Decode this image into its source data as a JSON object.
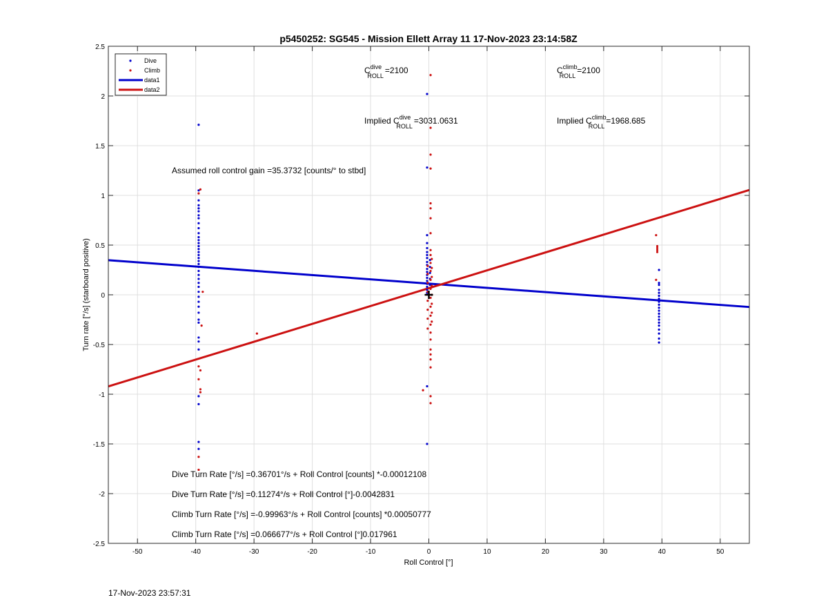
{
  "chart_data": {
    "type": "scatter",
    "title": "p5450252: SG545 - Mission Ellett Array 11 17-Nov-2023 23:14:58Z",
    "xlabel": "Roll Control [°]",
    "ylabel": "Turn rate [°/s] (starboard positive)",
    "xlim": [
      -55,
      55
    ],
    "ylim": [
      -2.5,
      2.5
    ],
    "xticks": [
      -50,
      -40,
      -30,
      -20,
      -10,
      0,
      10,
      20,
      30,
      40,
      50
    ],
    "yticks": [
      -2.5,
      -2,
      -1.5,
      -1,
      -0.5,
      0,
      0.5,
      1,
      1.5,
      2,
      2.5
    ],
    "grid": true,
    "legend_position": "top-left",
    "legend": [
      "Dive",
      "Climb",
      "data1",
      "data2"
    ],
    "colors": {
      "dive": "#0000cc",
      "climb": "#cc1111",
      "marker": "#000000"
    },
    "series": [
      {
        "name": "Dive",
        "kind": "points",
        "color": "#0000cc",
        "points": [
          [
            -39.5,
            1.71
          ],
          [
            -39.5,
            1.05
          ],
          [
            -39.5,
            0.95
          ],
          [
            -39.5,
            0.9
          ],
          [
            -39.5,
            0.87
          ],
          [
            -39.5,
            0.84
          ],
          [
            -39.5,
            0.8
          ],
          [
            -39.5,
            0.77
          ],
          [
            -39.5,
            0.72
          ],
          [
            -39.5,
            0.67
          ],
          [
            -39.5,
            0.62
          ],
          [
            -39.5,
            0.58
          ],
          [
            -39.5,
            0.55
          ],
          [
            -39.5,
            0.52
          ],
          [
            -39.5,
            0.49
          ],
          [
            -39.5,
            0.46
          ],
          [
            -39.5,
            0.43
          ],
          [
            -39.5,
            0.4
          ],
          [
            -39.5,
            0.37
          ],
          [
            -39.5,
            0.34
          ],
          [
            -39.5,
            0.31
          ],
          [
            -39.5,
            0.28
          ],
          [
            -39.5,
            0.24
          ],
          [
            -39.5,
            0.2
          ],
          [
            -39.5,
            0.16
          ],
          [
            -39.5,
            0.12
          ],
          [
            -39.5,
            0.08
          ],
          [
            -39.5,
            0.03
          ],
          [
            -39.5,
            -0.02
          ],
          [
            -39.5,
            -0.07
          ],
          [
            -39.5,
            -0.12
          ],
          [
            -39.5,
            -0.18
          ],
          [
            -39.5,
            -0.25
          ],
          [
            -39.5,
            -0.28
          ],
          [
            -39.5,
            -0.43
          ],
          [
            -39.5,
            -0.47
          ],
          [
            -39.5,
            -0.55
          ],
          [
            -39.5,
            -1.02
          ],
          [
            -39.5,
            -1.1
          ],
          [
            -39.5,
            -1.48
          ],
          [
            -39.5,
            -1.55
          ],
          [
            -0.3,
            2.02
          ],
          [
            -0.3,
            1.28
          ],
          [
            -0.3,
            0.6
          ],
          [
            -0.3,
            0.52
          ],
          [
            -0.3,
            0.47
          ],
          [
            -0.3,
            0.43
          ],
          [
            -0.3,
            0.4
          ],
          [
            -0.3,
            0.37
          ],
          [
            -0.3,
            0.33
          ],
          [
            -0.3,
            0.3
          ],
          [
            -0.3,
            0.26
          ],
          [
            -0.3,
            0.23
          ],
          [
            -0.3,
            0.2
          ],
          [
            -0.3,
            0.17
          ],
          [
            -0.3,
            0.14
          ],
          [
            -0.3,
            0.11
          ],
          [
            -0.3,
            0.08
          ],
          [
            -0.3,
            0.05
          ],
          [
            -0.3,
            0.02
          ],
          [
            0.2,
            0.35
          ],
          [
            0.2,
            0.28
          ],
          [
            0.2,
            0.22
          ],
          [
            0.2,
            0.16
          ],
          [
            0.2,
            0.1
          ],
          [
            -0.3,
            -0.92
          ],
          [
            -0.3,
            -1.5
          ],
          [
            39.5,
            0.25
          ],
          [
            39.5,
            0.12
          ],
          [
            39.5,
            0.1
          ],
          [
            39.5,
            0.05
          ],
          [
            39.5,
            0.02
          ],
          [
            39.5,
            -0.01
          ],
          [
            39.5,
            -0.04
          ],
          [
            39.5,
            -0.07
          ],
          [
            39.5,
            -0.1
          ],
          [
            39.5,
            -0.13
          ],
          [
            39.5,
            -0.16
          ],
          [
            39.5,
            -0.19
          ],
          [
            39.5,
            -0.22
          ],
          [
            39.5,
            -0.25
          ],
          [
            39.5,
            -0.28
          ],
          [
            39.5,
            -0.31
          ],
          [
            39.5,
            -0.35
          ],
          [
            39.5,
            -0.39
          ],
          [
            39.5,
            -0.44
          ],
          [
            39.5,
            -0.48
          ]
        ]
      },
      {
        "name": "Climb",
        "kind": "points",
        "color": "#cc1111",
        "points": [
          [
            -39.2,
            1.06
          ],
          [
            -39.5,
            1.02
          ],
          [
            -38.8,
            0.03
          ],
          [
            -39.0,
            -0.31
          ],
          [
            -39.5,
            -0.72
          ],
          [
            -39.2,
            -0.76
          ],
          [
            -39.5,
            -0.85
          ],
          [
            -39.2,
            -0.95
          ],
          [
            -39.2,
            -0.98
          ],
          [
            -39.5,
            -1.63
          ],
          [
            -39.5,
            -1.76
          ],
          [
            -29.5,
            -0.39
          ],
          [
            0.3,
            2.21
          ],
          [
            0.3,
            1.68
          ],
          [
            0.3,
            1.41
          ],
          [
            0.3,
            1.27
          ],
          [
            0.3,
            0.92
          ],
          [
            0.3,
            0.87
          ],
          [
            0.3,
            0.77
          ],
          [
            0.3,
            0.62
          ],
          [
            0.3,
            0.45
          ],
          [
            0.3,
            0.4
          ],
          [
            0.5,
            0.36
          ],
          [
            0.3,
            0.32
          ],
          [
            -0.2,
            0.29
          ],
          [
            0.5,
            0.27
          ],
          [
            0.3,
            0.24
          ],
          [
            -0.2,
            0.21
          ],
          [
            0.5,
            0.18
          ],
          [
            0.3,
            0.15
          ],
          [
            -0.2,
            0.12
          ],
          [
            0.5,
            0.09
          ],
          [
            0.3,
            0.06
          ],
          [
            -0.2,
            0.03
          ],
          [
            0.5,
            0.0
          ],
          [
            0.3,
            -0.03
          ],
          [
            -0.2,
            -0.06
          ],
          [
            0.5,
            -0.09
          ],
          [
            0.3,
            -0.12
          ],
          [
            -0.2,
            -0.15
          ],
          [
            0.5,
            -0.18
          ],
          [
            0.3,
            -0.21
          ],
          [
            -0.2,
            -0.24
          ],
          [
            0.5,
            -0.27
          ],
          [
            0.3,
            -0.3
          ],
          [
            -0.2,
            -0.34
          ],
          [
            0.3,
            -0.38
          ],
          [
            0.3,
            -0.45
          ],
          [
            0.3,
            -0.55
          ],
          [
            0.3,
            -0.6
          ],
          [
            0.3,
            -0.65
          ],
          [
            0.3,
            -0.73
          ],
          [
            -1.0,
            -0.96
          ],
          [
            0.3,
            -1.02
          ],
          [
            0.3,
            -1.09
          ],
          [
            39.0,
            0.6
          ],
          [
            39.2,
            0.49
          ],
          [
            39.2,
            0.47
          ],
          [
            39.2,
            0.45
          ],
          [
            39.2,
            0.43
          ],
          [
            39.0,
            0.15
          ]
        ]
      },
      {
        "name": "data1",
        "kind": "line",
        "color": "#0000cc",
        "slope": -0.0042831,
        "intercept": 0.11274
      },
      {
        "name": "data2",
        "kind": "line",
        "color": "#cc1111",
        "slope": 0.017961,
        "intercept": 0.066677
      }
    ],
    "marker_point": [
      0,
      0
    ],
    "annotations": {
      "c_roll_dive": {
        "pre": "C",
        "sup": "dive",
        "sub": "ROLL",
        "value": "=2100"
      },
      "c_roll_climb": {
        "pre": "C",
        "sup": "climb",
        "sub": "ROLL",
        "value": "=2100"
      },
      "implied_dive": {
        "pre": "Implied C",
        "sup": "dive",
        "sub": "ROLL",
        "value": "=3031.0631"
      },
      "implied_climb": {
        "pre": "Implied C",
        "sup": "climb",
        "sub": "ROLL",
        "value": "=1968.685"
      },
      "gain": "Assumed roll control gain =35.3732 [counts/° to stbd]",
      "equations": [
        "Dive Turn Rate [°/s] =0.36701°/s + Roll Control [counts] *-0.00012108",
        "Dive Turn Rate [°/s] =0.11274°/s + Roll Control [°]-0.0042831",
        "Climb Turn Rate [°/s] =-0.99963°/s + Roll Control [counts] *0.00050777",
        "Climb Turn Rate [°/s] =0.066677°/s + Roll Control [°]0.017961"
      ]
    }
  },
  "footer": {
    "timestamp": "17-Nov-2023 23:57:31"
  }
}
